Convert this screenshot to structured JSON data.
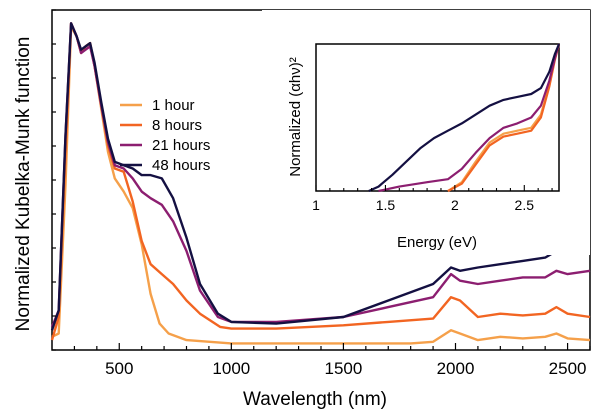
{
  "chart_data": [
    {
      "type": "line",
      "xlabel": "Wavelength (nm)",
      "ylabel": "Normalized Kubelka-Munk function",
      "xlim": [
        200,
        2600
      ],
      "ylim": [
        0,
        1.0
      ],
      "x_ticks": [
        500,
        1000,
        1500,
        2000,
        2500
      ],
      "y_ticks_labeled": false,
      "grid": false,
      "legend_position": "upper-left",
      "series": [
        {
          "name": "1 hour",
          "color": "#f5a04a",
          "points": [
            [
              200,
              0.04
            ],
            [
              230,
              0.05
            ],
            [
              260,
              0.5
            ],
            [
              285,
              0.98
            ],
            [
              310,
              0.95
            ],
            [
              330,
              0.9
            ],
            [
              350,
              0.92
            ],
            [
              370,
              0.93
            ],
            [
              390,
              0.86
            ],
            [
              420,
              0.73
            ],
            [
              450,
              0.6
            ],
            [
              480,
              0.52
            ],
            [
              520,
              0.48
            ],
            [
              560,
              0.43
            ],
            [
              600,
              0.32
            ],
            [
              640,
              0.17
            ],
            [
              680,
              0.08
            ],
            [
              720,
              0.05
            ],
            [
              800,
              0.03
            ],
            [
              1000,
              0.02
            ],
            [
              1500,
              0.02
            ],
            [
              1800,
              0.02
            ],
            [
              1900,
              0.025
            ],
            [
              1980,
              0.06
            ],
            [
              2020,
              0.05
            ],
            [
              2100,
              0.03
            ],
            [
              2200,
              0.04
            ],
            [
              2300,
              0.035
            ],
            [
              2400,
              0.04
            ],
            [
              2450,
              0.05
            ],
            [
              2500,
              0.035
            ],
            [
              2600,
              0.03
            ]
          ]
        },
        {
          "name": "8 hours",
          "color": "#f26522",
          "points": [
            [
              200,
              0.03
            ],
            [
              230,
              0.1
            ],
            [
              260,
              0.6
            ],
            [
              285,
              0.99
            ],
            [
              310,
              0.95
            ],
            [
              330,
              0.9
            ],
            [
              350,
              0.92
            ],
            [
              370,
              0.93
            ],
            [
              390,
              0.86
            ],
            [
              420,
              0.74
            ],
            [
              450,
              0.62
            ],
            [
              480,
              0.55
            ],
            [
              520,
              0.54
            ],
            [
              560,
              0.45
            ],
            [
              600,
              0.33
            ],
            [
              640,
              0.26
            ],
            [
              690,
              0.23
            ],
            [
              740,
              0.2
            ],
            [
              800,
              0.15
            ],
            [
              860,
              0.11
            ],
            [
              950,
              0.07
            ],
            [
              1000,
              0.065
            ],
            [
              1200,
              0.065
            ],
            [
              1500,
              0.075
            ],
            [
              1700,
              0.085
            ],
            [
              1900,
              0.095
            ],
            [
              1980,
              0.16
            ],
            [
              2020,
              0.15
            ],
            [
              2100,
              0.1
            ],
            [
              2200,
              0.11
            ],
            [
              2300,
              0.105
            ],
            [
              2400,
              0.11
            ],
            [
              2450,
              0.13
            ],
            [
              2500,
              0.11
            ],
            [
              2600,
              0.1
            ]
          ]
        },
        {
          "name": "21 hours",
          "color": "#8c1e70",
          "points": [
            [
              200,
              0.07
            ],
            [
              230,
              0.12
            ],
            [
              260,
              0.65
            ],
            [
              285,
              0.99
            ],
            [
              310,
              0.95
            ],
            [
              330,
              0.9
            ],
            [
              350,
              0.91
            ],
            [
              370,
              0.92
            ],
            [
              390,
              0.86
            ],
            [
              420,
              0.74
            ],
            [
              450,
              0.63
            ],
            [
              480,
              0.56
            ],
            [
              520,
              0.55
            ],
            [
              560,
              0.52
            ],
            [
              600,
              0.48
            ],
            [
              640,
              0.46
            ],
            [
              690,
              0.44
            ],
            [
              740,
              0.39
            ],
            [
              800,
              0.3
            ],
            [
              860,
              0.18
            ],
            [
              940,
              0.1
            ],
            [
              1000,
              0.085
            ],
            [
              1200,
              0.085
            ],
            [
              1500,
              0.1
            ],
            [
              1700,
              0.13
            ],
            [
              1900,
              0.16
            ],
            [
              1980,
              0.23
            ],
            [
              2020,
              0.21
            ],
            [
              2100,
              0.2
            ],
            [
              2200,
              0.21
            ],
            [
              2300,
              0.22
            ],
            [
              2400,
              0.22
            ],
            [
              2450,
              0.24
            ],
            [
              2500,
              0.23
            ],
            [
              2600,
              0.24
            ]
          ]
        },
        {
          "name": "48 hours",
          "color": "#141042",
          "points": [
            [
              200,
              0.06
            ],
            [
              230,
              0.12
            ],
            [
              260,
              0.65
            ],
            [
              285,
              0.99
            ],
            [
              310,
              0.95
            ],
            [
              330,
              0.91
            ],
            [
              350,
              0.92
            ],
            [
              370,
              0.93
            ],
            [
              390,
              0.87
            ],
            [
              420,
              0.75
            ],
            [
              450,
              0.64
            ],
            [
              480,
              0.57
            ],
            [
              520,
              0.56
            ],
            [
              560,
              0.55
            ],
            [
              600,
              0.53
            ],
            [
              640,
              0.53
            ],
            [
              690,
              0.52
            ],
            [
              740,
              0.46
            ],
            [
              800,
              0.34
            ],
            [
              860,
              0.2
            ],
            [
              940,
              0.11
            ],
            [
              1000,
              0.085
            ],
            [
              1200,
              0.08
            ],
            [
              1500,
              0.1
            ],
            [
              1700,
              0.15
            ],
            [
              1900,
              0.2
            ],
            [
              1980,
              0.25
            ],
            [
              2020,
              0.24
            ],
            [
              2100,
              0.25
            ],
            [
              2200,
              0.26
            ],
            [
              2300,
              0.27
            ],
            [
              2400,
              0.28
            ],
            [
              2450,
              0.3
            ],
            [
              2500,
              0.3
            ],
            [
              2600,
              0.31
            ]
          ]
        }
      ]
    },
    {
      "type": "line",
      "placement": "inset-top-right",
      "xlabel": "Energy (eV)",
      "ylabel": "Normalized (αhν)²",
      "xlim": [
        1.0,
        2.75
      ],
      "ylim": [
        0,
        1.0
      ],
      "x_ticks": [
        1,
        1.5,
        2,
        2.5
      ],
      "x_tick_labels": [
        "1",
        "1.5",
        "2",
        "2.5"
      ],
      "grid": false,
      "series": [
        {
          "name": "1 hour",
          "color": "#f5a04a",
          "points": [
            [
              1.95,
              0.0
            ],
            [
              2.05,
              0.06
            ],
            [
              2.15,
              0.2
            ],
            [
              2.25,
              0.33
            ],
            [
              2.35,
              0.39
            ],
            [
              2.45,
              0.41
            ],
            [
              2.55,
              0.43
            ],
            [
              2.62,
              0.52
            ],
            [
              2.68,
              0.72
            ],
            [
              2.72,
              0.9
            ],
            [
              2.75,
              1.0
            ]
          ]
        },
        {
          "name": "8 hours",
          "color": "#f26522",
          "points": [
            [
              1.95,
              0.0
            ],
            [
              2.05,
              0.05
            ],
            [
              2.15,
              0.18
            ],
            [
              2.25,
              0.31
            ],
            [
              2.35,
              0.37
            ],
            [
              2.45,
              0.39
            ],
            [
              2.55,
              0.41
            ],
            [
              2.62,
              0.5
            ],
            [
              2.68,
              0.71
            ],
            [
              2.72,
              0.89
            ],
            [
              2.75,
              1.0
            ]
          ]
        },
        {
          "name": "21 hours",
          "color": "#8c1e70",
          "points": [
            [
              1.45,
              0.0
            ],
            [
              1.6,
              0.03
            ],
            [
              1.8,
              0.06
            ],
            [
              1.95,
              0.08
            ],
            [
              2.05,
              0.15
            ],
            [
              2.15,
              0.26
            ],
            [
              2.25,
              0.36
            ],
            [
              2.35,
              0.43
            ],
            [
              2.45,
              0.46
            ],
            [
              2.55,
              0.5
            ],
            [
              2.62,
              0.58
            ],
            [
              2.68,
              0.75
            ],
            [
              2.72,
              0.9
            ],
            [
              2.75,
              1.0
            ]
          ]
        },
        {
          "name": "48 hours",
          "color": "#141042",
          "points": [
            [
              1.38,
              0.0
            ],
            [
              1.45,
              0.03
            ],
            [
              1.55,
              0.11
            ],
            [
              1.65,
              0.2
            ],
            [
              1.75,
              0.29
            ],
            [
              1.85,
              0.36
            ],
            [
              1.95,
              0.41
            ],
            [
              2.05,
              0.46
            ],
            [
              2.15,
              0.52
            ],
            [
              2.25,
              0.58
            ],
            [
              2.35,
              0.62
            ],
            [
              2.45,
              0.64
            ],
            [
              2.55,
              0.66
            ],
            [
              2.62,
              0.7
            ],
            [
              2.68,
              0.81
            ],
            [
              2.72,
              0.93
            ],
            [
              2.75,
              1.0
            ]
          ]
        }
      ]
    }
  ]
}
